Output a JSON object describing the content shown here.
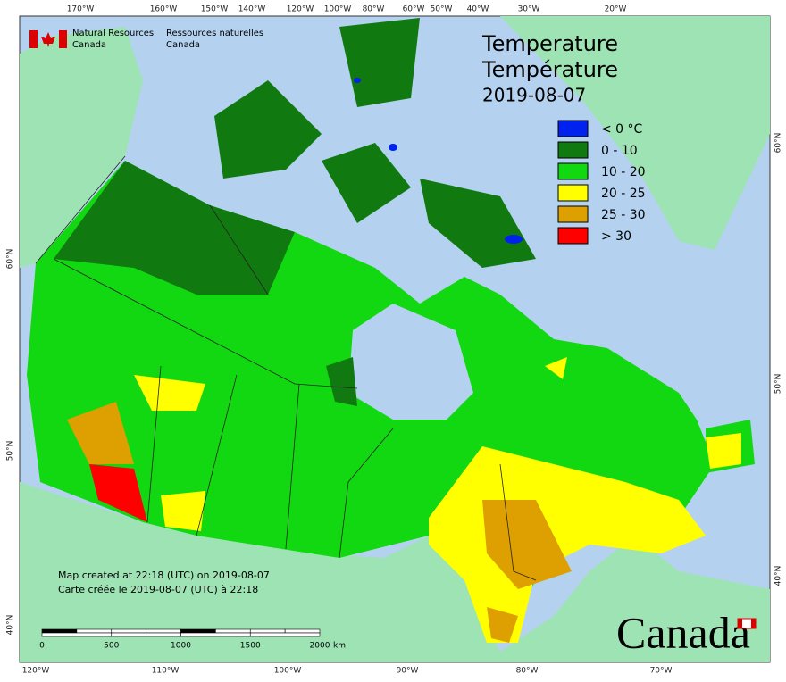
{
  "header": {
    "department_en": [
      "Natural Resources",
      "Canada"
    ],
    "department_fr": [
      "Ressources naturelles",
      "Canada"
    ]
  },
  "title": [
    "Temperature",
    "Température"
  ],
  "date": "2019-08-07",
  "legend": [
    {
      "label": "< 0 °C",
      "color": "#0022ee"
    },
    {
      "label": "0 - 10",
      "color": "#107a10"
    },
    {
      "label": "10 - 20",
      "color": "#11d811"
    },
    {
      "label": "20 - 25",
      "color": "#ffff00"
    },
    {
      "label": "25 - 30",
      "color": "#dda000"
    },
    {
      "label": "> 30",
      "color": "#ff0000"
    }
  ],
  "graticule": {
    "top": [
      "170°W",
      "160°W",
      "150°W",
      "140°W",
      "120°W",
      "100°W",
      "80°W",
      "60°W",
      "50°W",
      "40°W",
      "30°W",
      "20°W"
    ],
    "bottom": [
      "120°W",
      "110°W",
      "100°W",
      "90°W",
      "80°W",
      "70°W"
    ],
    "left": [
      "60°N",
      "50°N",
      "40°N"
    ],
    "right": [
      "60°N",
      "50°N",
      "40°N"
    ]
  },
  "credits": [
    "Map created at 22:18 (UTC) on 2019-08-07",
    "Carte créée le 2019-08-07 (UTC) à 22:18"
  ],
  "scale": {
    "labels": [
      "0",
      "500",
      "1000",
      "1500",
      "2000"
    ],
    "unit": "km"
  },
  "wordmark": "Canada"
}
